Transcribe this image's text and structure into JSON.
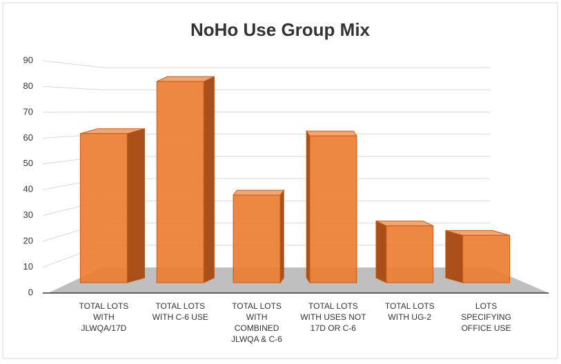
{
  "chart_data": {
    "type": "bar3d",
    "title": "NoHo Use Group Mix",
    "categories": [
      "TOTAL LOTS WITH JLWQA/17D",
      "TOTAL LOTS WITH C-6 USE",
      "TOTAL LOTS WITH COMBINED JLWQA & C-6",
      "TOTAL LOTS WITH USES NOT 17D OR C-6",
      "TOTAL LOTS WITH UG-2",
      "LOTS SPECIFYING OFFICE USE"
    ],
    "values": [
      63,
      85,
      37,
      62,
      24,
      20
    ],
    "color": "#ed7d31",
    "ylim": [
      0,
      90
    ],
    "yticks": [
      0,
      10,
      20,
      30,
      40,
      50,
      60,
      70,
      80,
      90
    ],
    "grid": true
  }
}
